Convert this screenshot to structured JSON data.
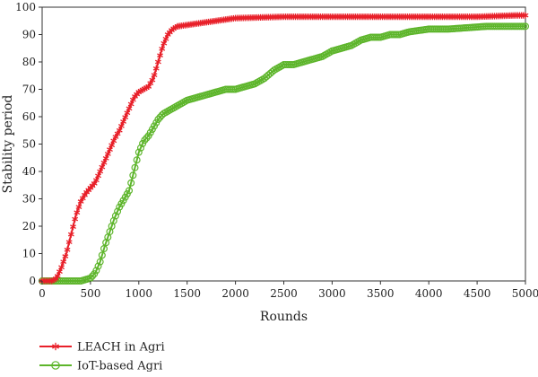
{
  "chart_data": {
    "type": "line",
    "xlabel": "Rounds",
    "ylabel": "Stability period",
    "xlim": [
      0,
      5000
    ],
    "ylim": [
      0,
      100
    ],
    "x_ticks": [
      "0",
      "500",
      "1000",
      "1500",
      "2000",
      "2500",
      "3000",
      "3500",
      "4000",
      "4500",
      "5000"
    ],
    "y_ticks": [
      "0",
      "10",
      "20",
      "30",
      "40",
      "50",
      "60",
      "70",
      "80",
      "90",
      "100"
    ],
    "grid": false,
    "legend_position": "bottom-left",
    "series": [
      {
        "name": "LEACH in Agri",
        "color": "#e8202a",
        "marker": "asterisk",
        "points": [
          [
            0,
            0
          ],
          [
            100,
            0
          ],
          [
            150,
            1
          ],
          [
            200,
            5
          ],
          [
            250,
            10
          ],
          [
            300,
            17
          ],
          [
            350,
            24
          ],
          [
            400,
            29
          ],
          [
            450,
            32
          ],
          [
            500,
            34
          ],
          [
            550,
            36
          ],
          [
            600,
            40
          ],
          [
            650,
            44
          ],
          [
            700,
            48
          ],
          [
            750,
            52
          ],
          [
            800,
            55
          ],
          [
            850,
            59
          ],
          [
            900,
            63
          ],
          [
            950,
            67
          ],
          [
            1000,
            69
          ],
          [
            1050,
            70
          ],
          [
            1100,
            71
          ],
          [
            1150,
            74
          ],
          [
            1200,
            80
          ],
          [
            1250,
            86
          ],
          [
            1300,
            90
          ],
          [
            1350,
            92
          ],
          [
            1400,
            93
          ],
          [
            1500,
            93.5
          ],
          [
            1600,
            94
          ],
          [
            1700,
            94.5
          ],
          [
            1800,
            95
          ],
          [
            1900,
            95.5
          ],
          [
            2000,
            96
          ],
          [
            2500,
            96.5
          ],
          [
            3000,
            96.5
          ],
          [
            3500,
            96.5
          ],
          [
            4000,
            96.5
          ],
          [
            4500,
            96.5
          ],
          [
            4900,
            97
          ],
          [
            5000,
            97
          ]
        ]
      },
      {
        "name": "IoT-based Agri",
        "color": "#5db52b",
        "marker": "circle",
        "points": [
          [
            0,
            0
          ],
          [
            400,
            0
          ],
          [
            450,
            0.5
          ],
          [
            500,
            1
          ],
          [
            550,
            3
          ],
          [
            600,
            7
          ],
          [
            650,
            13
          ],
          [
            700,
            18
          ],
          [
            750,
            23
          ],
          [
            800,
            27
          ],
          [
            850,
            30
          ],
          [
            900,
            33
          ],
          [
            950,
            40
          ],
          [
            1000,
            47
          ],
          [
            1050,
            51
          ],
          [
            1100,
            53
          ],
          [
            1150,
            56
          ],
          [
            1200,
            59
          ],
          [
            1250,
            61
          ],
          [
            1300,
            62
          ],
          [
            1350,
            63
          ],
          [
            1400,
            64
          ],
          [
            1500,
            66
          ],
          [
            1600,
            67
          ],
          [
            1700,
            68
          ],
          [
            1800,
            69
          ],
          [
            1900,
            70
          ],
          [
            2000,
            70
          ],
          [
            2100,
            71
          ],
          [
            2200,
            72
          ],
          [
            2300,
            74
          ],
          [
            2400,
            77
          ],
          [
            2500,
            79
          ],
          [
            2600,
            79
          ],
          [
            2700,
            80
          ],
          [
            2800,
            81
          ],
          [
            2900,
            82
          ],
          [
            3000,
            84
          ],
          [
            3100,
            85
          ],
          [
            3200,
            86
          ],
          [
            3300,
            88
          ],
          [
            3400,
            89
          ],
          [
            3500,
            89
          ],
          [
            3600,
            90
          ],
          [
            3700,
            90
          ],
          [
            3800,
            91
          ],
          [
            3900,
            91.5
          ],
          [
            4000,
            92
          ],
          [
            4200,
            92
          ],
          [
            4400,
            92.5
          ],
          [
            4600,
            93
          ],
          [
            4800,
            93
          ],
          [
            5000,
            93
          ]
        ]
      }
    ]
  }
}
